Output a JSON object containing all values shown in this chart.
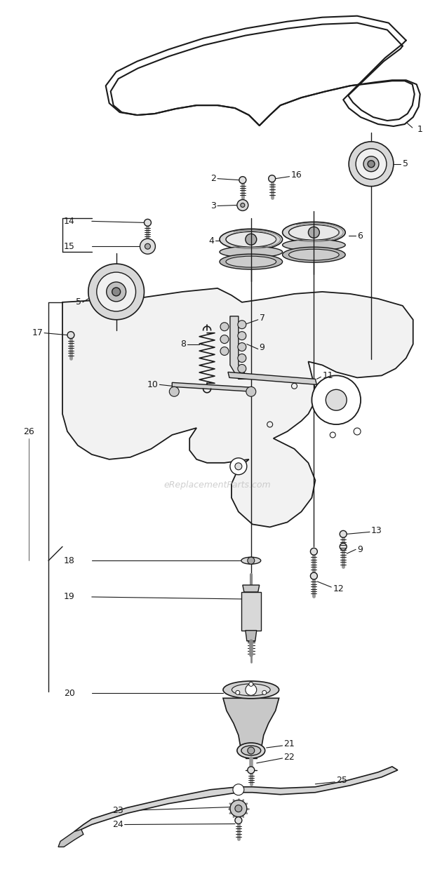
{
  "bg_color": "#ffffff",
  "line_color": "#1a1a1a",
  "watermark": "eReplacementParts.com",
  "watermark_color": "#bbbbbb",
  "fig_w": 6.2,
  "fig_h": 12.46,
  "dpi": 100
}
